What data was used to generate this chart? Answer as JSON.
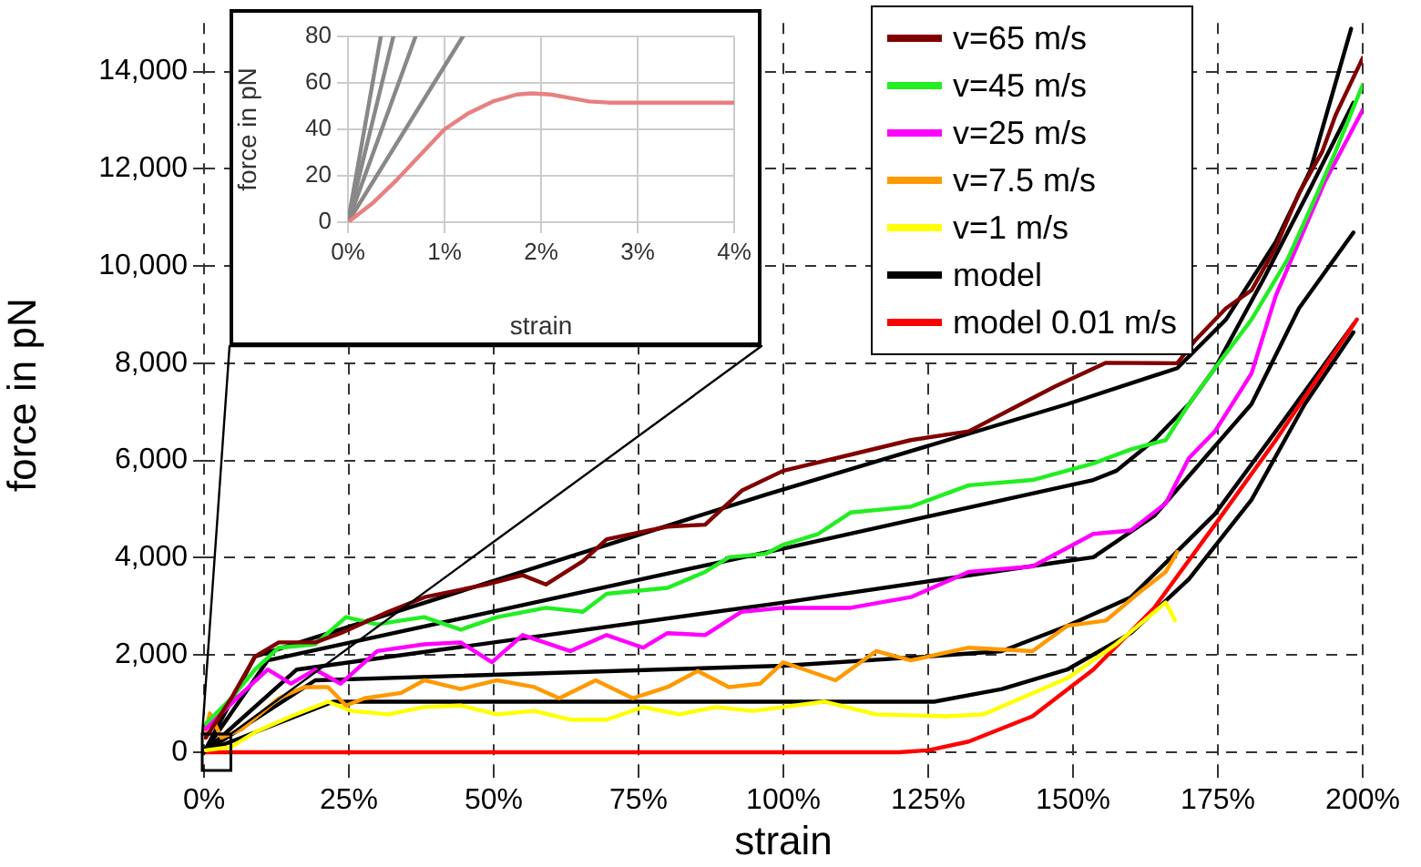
{
  "chart_data": [
    {
      "type": "line",
      "xlabel": "strain",
      "ylabel": "force in pN",
      "xlim": [
        0,
        200
      ],
      "ylim": [
        -300,
        15000
      ],
      "xticks": [
        {
          "value": 0,
          "label": "0%"
        },
        {
          "value": 25,
          "label": "25%"
        },
        {
          "value": 50,
          "label": "50%"
        },
        {
          "value": 75,
          "label": "75%"
        },
        {
          "value": 100,
          "label": "100%"
        },
        {
          "value": 125,
          "label": "125%"
        },
        {
          "value": 150,
          "label": "150%"
        },
        {
          "value": 175,
          "label": "175%"
        },
        {
          "value": 200,
          "label": "200%"
        }
      ],
      "yticks": [
        0,
        {
          "value": 2000,
          "label": "2,000"
        },
        {
          "value": 4000,
          "label": "4,000"
        },
        {
          "value": 6000,
          "label": "6,000"
        },
        {
          "value": 8000,
          "label": "8,000"
        },
        {
          "value": 10000,
          "label": "10,000"
        },
        {
          "value": 12000,
          "label": "12,000"
        },
        {
          "value": 14000,
          "label": "14,000"
        }
      ],
      "grid": true,
      "legend": "top right",
      "marker": "none",
      "line_style": "solid",
      "series": [
        {
          "name": "v=65 m/s",
          "color": "#800000",
          "x": [
            0.3,
            4.7,
            8.8,
            12.9,
            19.2,
            23.6,
            31.8,
            38.1,
            48.7,
            55,
            59,
            65.4,
            69.5,
            80,
            86.5,
            92.8,
            100,
            111.6,
            122,
            132,
            141,
            147,
            155.7,
            168,
            171,
            176.4,
            180.8,
            185,
            189,
            193,
            195.3,
            200
          ],
          "values": [
            300,
            1110,
            1970,
            2260,
            2260,
            2450,
            2890,
            3190,
            3450,
            3640,
            3450,
            3930,
            4380,
            4640,
            4680,
            5380,
            5790,
            6120,
            6420,
            6600,
            7160,
            7530,
            8010,
            8000,
            8460,
            9130,
            9500,
            10390,
            11500,
            12350,
            13100,
            14280
          ]
        },
        {
          "name": "v=45 m/s",
          "color": "#22ee22",
          "x": [
            0.3,
            4.7,
            8.8,
            12.9,
            19.2,
            24.5,
            29.9,
            34,
            38,
            44.3,
            50.6,
            59,
            65.4,
            69.5,
            80,
            86.5,
            90.6,
            96.9,
            100,
            106,
            111.6,
            122,
            132,
            143,
            153.5,
            160,
            166,
            168,
            170,
            174.5,
            180.8,
            187,
            191.2,
            195.3,
            200
          ],
          "values": [
            590,
            1110,
            1700,
            2150,
            2220,
            2780,
            2630,
            2710,
            2780,
            2520,
            2780,
            2970,
            2890,
            3260,
            3380,
            3710,
            4010,
            4080,
            4270,
            4490,
            4930,
            5050,
            5490,
            5600,
            5940,
            6230,
            6420,
            6790,
            7160,
            7900,
            8900,
            10130,
            11240,
            12350,
            13730
          ]
        },
        {
          "name": "v=25 m/s",
          "color": "#ff00ff",
          "x": [
            0.3,
            6.6,
            11,
            15,
            19.2,
            23.6,
            29.9,
            38,
            44.3,
            49.7,
            55,
            63.2,
            69.5,
            75.8,
            80,
            86.5,
            92.8,
            100,
            111.6,
            122,
            132,
            143,
            153.5,
            160,
            166,
            170,
            174.5,
            180.8,
            185,
            189,
            193.4,
            200
          ],
          "values": [
            480,
            1220,
            1700,
            1410,
            1700,
            1410,
            2080,
            2220,
            2260,
            1850,
            2410,
            2080,
            2410,
            2150,
            2450,
            2410,
            2890,
            2970,
            2970,
            3190,
            3710,
            3820,
            4490,
            4560,
            5120,
            6050,
            6600,
            7790,
            9390,
            10500,
            11720,
            13210
          ]
        },
        {
          "name": "v=7.5 m/s",
          "color": "#ff9900",
          "x": [
            0,
            1,
            3,
            6.6,
            12.9,
            17.3,
            21.4,
            24.5,
            27.7,
            34,
            38,
            44.3,
            50.6,
            57,
            61.3,
            67.6,
            74,
            80,
            85.2,
            90.6,
            96,
            100,
            109,
            116,
            122,
            132,
            143,
            149,
            155.7,
            162,
            166,
            168
          ],
          "values": [
            300,
            800,
            300,
            480,
            1110,
            1340,
            1340,
            960,
            1110,
            1220,
            1480,
            1300,
            1480,
            1340,
            1110,
            1480,
            1110,
            1340,
            1670,
            1340,
            1410,
            1850,
            1480,
            2080,
            1890,
            2150,
            2080,
            2600,
            2710,
            3340,
            3710,
            4120
          ]
        },
        {
          "name": "v=1 m/s",
          "color": "#ffff00",
          "x": [
            0.3,
            4.7,
            8.8,
            15,
            21.4,
            25.5,
            31.8,
            38,
            44.3,
            50.6,
            57,
            63.2,
            69.5,
            75.8,
            82,
            88.4,
            94.7,
            100,
            107,
            116,
            128,
            134.6,
            149,
            157.5,
            163,
            166,
            167.6
          ],
          "values": [
            40,
            110,
            410,
            740,
            1040,
            850,
            780,
            930,
            960,
            780,
            850,
            670,
            670,
            930,
            780,
            930,
            850,
            930,
            1040,
            780,
            740,
            780,
            1520,
            2230,
            2780,
            3080,
            2710
          ]
        },
        {
          "name": "model",
          "color": "#000000",
          "x": [
            0,
            8.8,
            97,
            149,
            168,
            176.4,
            185,
            191,
            198
          ],
          "values": [
            0,
            1970,
            5300,
            7160,
            7900,
            8900,
            10500,
            11980,
            14880
          ]
        },
        {
          "name": "model 0.01 m/s",
          "color": "#ff0000",
          "x": [
            0,
            120,
            125,
            132,
            143,
            153.5,
            164,
            174.5,
            185,
            199
          ],
          "values": [
            0,
            0,
            40,
            220,
            740,
            1700,
            2970,
            4680,
            6420,
            8900
          ]
        },
        {
          "color": "#000000",
          "x": [
            0,
            11,
            100,
            153.5,
            157.5,
            164,
            170,
            174.5,
            183,
            191,
            198.4
          ],
          "values": [
            0,
            1890,
            4190,
            5600,
            5790,
            6420,
            7160,
            7900,
            9760,
            11610,
            13360
          ]
        },
        {
          "color": "#000000",
          "x": [
            0,
            16,
            100,
            147,
            153.5,
            164,
            170,
            180.8,
            189,
            198.4
          ],
          "values": [
            0,
            1700,
            3080,
            3900,
            4010,
            4860,
            5680,
            7160,
            9130,
            10690
          ]
        },
        {
          "color": "#000000",
          "x": [
            0,
            19.2,
            100,
            125,
            137.7,
            149,
            160,
            174.5,
            185,
            198.4
          ],
          "values": [
            0,
            1480,
            1780,
            1970,
            2080,
            2600,
            3190,
            4900,
            6600,
            8800
          ]
        },
        {
          "color": "#000000",
          "x": [
            0,
            22.3,
            126,
            137.7,
            149,
            160,
            170,
            180.8,
            190,
            198.4
          ],
          "values": [
            0,
            1040,
            1040,
            1300,
            1700,
            2450,
            3560,
            5190,
            7160,
            8640
          ]
        }
      ]
    },
    {
      "type": "line",
      "xlabel": "strain",
      "ylabel": "force in pN",
      "xlim": [
        0,
        4
      ],
      "ylim": [
        0,
        80
      ],
      "xticks": [
        {
          "value": 0,
          "label": "0%"
        },
        {
          "value": 1,
          "label": "1%"
        },
        {
          "value": 2,
          "label": "2%"
        },
        {
          "value": 3,
          "label": "3%"
        },
        {
          "value": 4,
          "label": "4%"
        }
      ],
      "yticks": [
        0,
        20,
        40,
        60,
        80
      ],
      "grid": true,
      "marker": "none",
      "line_style": "solid",
      "series": [
        {
          "color": "#e88080",
          "x": [
            0,
            0.25,
            0.5,
            0.75,
            1,
            1.25,
            1.5,
            1.75,
            1.9,
            2.1,
            2.3,
            2.5,
            2.7,
            3,
            4
          ],
          "values": [
            0,
            8,
            18,
            29,
            40,
            47,
            52,
            55,
            55.5,
            55,
            53.5,
            52,
            51.5,
            51.5,
            51.5
          ]
        },
        {
          "color": "#888888",
          "x": [
            0,
            0.34
          ],
          "values": [
            0,
            80
          ]
        },
        {
          "color": "#888888",
          "x": [
            0,
            0.47
          ],
          "values": [
            0,
            80
          ]
        },
        {
          "color": "#888888",
          "x": [
            0,
            0.7
          ],
          "values": [
            0,
            80
          ]
        },
        {
          "color": "#888888",
          "x": [
            0,
            1.19
          ],
          "values": [
            0,
            80
          ]
        }
      ]
    }
  ]
}
